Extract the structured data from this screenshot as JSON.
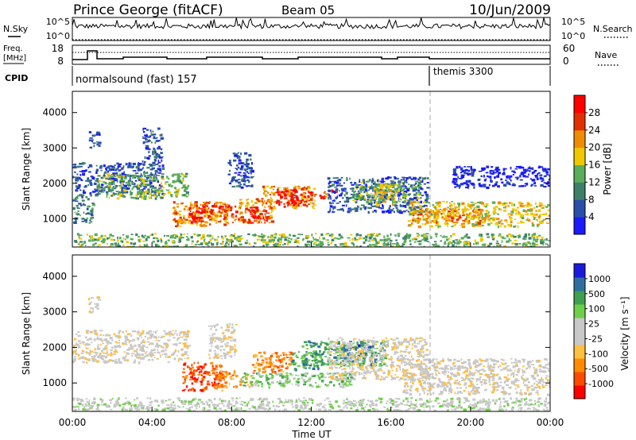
{
  "header": {
    "station": "Prince George (fitACF)",
    "beam": "Beam 05",
    "date": "10/Jun/2009"
  },
  "top_strip": {
    "nsky_label": "N.Sky",
    "nsearch_label": "N.Search",
    "left_ticks": [
      "10^5",
      "10^0"
    ],
    "right_ticks": [
      "10^5",
      "10^0"
    ],
    "freq_label_1": "Freq.",
    "freq_label_2": "[MHz]",
    "freq_ticks": [
      "18",
      "8"
    ],
    "nave_label": "Nave",
    "nave_ticks": [
      "60",
      "0"
    ],
    "cpid_label": "CPID",
    "cpid_segments": [
      {
        "label": "normalsound (fast) 157",
        "start_hour": 0
      },
      {
        "label": "themis 3300",
        "start_hour": 18
      }
    ]
  },
  "chart_data": [
    {
      "type": "heatmap",
      "title": "",
      "xlabel": "",
      "ylabel": "Slant Range [km]",
      "xlim_hours": [
        0,
        24
      ],
      "ylim": [
        200,
        4600
      ],
      "y_ticks": [
        "1000",
        "2000",
        "3000",
        "4000"
      ],
      "colorbar_label": "Power [dB]",
      "colorbar_ticks": [
        "4",
        "8",
        "12",
        "16",
        "20",
        "24",
        "28"
      ],
      "colorbar_range": [
        0,
        32
      ],
      "colors": [
        "#1a1aff",
        "#2a4fa8",
        "#3e7f6a",
        "#5aad5a",
        "#f0c800",
        "#f08c00",
        "#e03000",
        "#ff0000"
      ],
      "regions": [
        {
          "t0": 0.0,
          "t1": 4.5,
          "r0": 1700,
          "r1": 2600,
          "level": 1
        },
        {
          "t0": 1.2,
          "t1": 5.8,
          "r0": 1600,
          "r1": 2300,
          "level": 3
        },
        {
          "t0": 0.8,
          "t1": 1.3,
          "r0": 3000,
          "r1": 3500,
          "level": 1
        },
        {
          "t0": 3.5,
          "t1": 4.5,
          "r0": 2600,
          "r1": 3600,
          "level": 1
        },
        {
          "t0": 0.0,
          "t1": 1.0,
          "r0": 900,
          "r1": 1700,
          "level": 2
        },
        {
          "t0": 5.0,
          "t1": 7.8,
          "r0": 800,
          "r1": 1500,
          "level": 5
        },
        {
          "t0": 5.8,
          "t1": 7.0,
          "r0": 900,
          "r1": 1400,
          "level": 7
        },
        {
          "t0": 7.3,
          "t1": 8.2,
          "r0": 900,
          "r1": 1400,
          "level": 6
        },
        {
          "t0": 8.3,
          "t1": 10.0,
          "r0": 900,
          "r1": 1600,
          "level": 5
        },
        {
          "t0": 8.8,
          "t1": 9.8,
          "r0": 900,
          "r1": 1400,
          "level": 7
        },
        {
          "t0": 9.5,
          "t1": 12.2,
          "r0": 1300,
          "r1": 1950,
          "level": 5
        },
        {
          "t0": 10.2,
          "t1": 12.0,
          "r0": 1400,
          "r1": 1850,
          "level": 7
        },
        {
          "t0": 12.3,
          "t1": 13.2,
          "r0": 1600,
          "r1": 1850,
          "level": 6
        },
        {
          "t0": 7.8,
          "t1": 9.0,
          "r0": 1900,
          "r1": 2900,
          "level": 1
        },
        {
          "t0": 12.8,
          "t1": 17.8,
          "r0": 1200,
          "r1": 2200,
          "level": 1
        },
        {
          "t0": 14.0,
          "t1": 17.5,
          "r0": 1500,
          "r1": 2100,
          "level": 3
        },
        {
          "t0": 15.0,
          "t1": 16.2,
          "r0": 1400,
          "r1": 2000,
          "level": 4
        },
        {
          "t0": 16.8,
          "t1": 24.0,
          "r0": 800,
          "r1": 1500,
          "level": 4
        },
        {
          "t0": 17.0,
          "t1": 20.5,
          "r0": 900,
          "r1": 1300,
          "level": 5
        },
        {
          "t0": 19.0,
          "t1": 24.0,
          "r0": 1900,
          "r1": 2500,
          "level": 0
        },
        {
          "t0": 0.0,
          "t1": 24.0,
          "r0": 200,
          "r1": 600,
          "level": 3
        }
      ]
    },
    {
      "type": "heatmap",
      "title": "",
      "xlabel": "Time UT",
      "ylabel": "Slant Range [km]",
      "xlim_hours": [
        0,
        24
      ],
      "ylim": [
        200,
        4600
      ],
      "x_ticks": [
        "00:00",
        "04:00",
        "08:00",
        "12:00",
        "16:00",
        "20:00",
        "00:00"
      ],
      "y_ticks": [
        "1000",
        "2000",
        "3000",
        "4000"
      ],
      "colorbar_label": "Velocity [m s⁻¹]",
      "colorbar_ticks": [
        "1000",
        "500",
        "100",
        "25",
        "-25",
        "-100",
        "-500",
        "-1000"
      ],
      "colors": [
        "#ff0000",
        "#ff4a00",
        "#ff8c00",
        "#ffbf40",
        "#c8c8c8",
        "#c8c8c8",
        "#6fcf4a",
        "#3ea050",
        "#2f6fa0",
        "#1a1adf"
      ],
      "regions": [
        {
          "t0": 0.0,
          "t1": 5.8,
          "r0": 1600,
          "r1": 2500,
          "color": 4
        },
        {
          "t0": 0.8,
          "t1": 1.3,
          "r0": 3000,
          "r1": 3500,
          "color": 4
        },
        {
          "t0": 5.5,
          "t1": 7.5,
          "r0": 800,
          "r1": 1600,
          "color": 1
        },
        {
          "t0": 7.0,
          "t1": 8.2,
          "r0": 900,
          "r1": 1400,
          "color": 2
        },
        {
          "t0": 8.3,
          "t1": 9.0,
          "r0": 900,
          "r1": 1300,
          "color": 3
        },
        {
          "t0": 8.5,
          "t1": 11.0,
          "r0": 900,
          "r1": 1300,
          "color": 6
        },
        {
          "t0": 9.0,
          "t1": 11.0,
          "r0": 1300,
          "r1": 1900,
          "color": 2
        },
        {
          "t0": 11.0,
          "t1": 12.5,
          "r0": 1400,
          "r1": 1900,
          "color": 7
        },
        {
          "t0": 11.5,
          "t1": 15.8,
          "r0": 1500,
          "r1": 2200,
          "color": 7
        },
        {
          "t0": 13.5,
          "t1": 15.0,
          "r0": 1700,
          "r1": 2100,
          "color": 8
        },
        {
          "t0": 11.0,
          "t1": 14.0,
          "r0": 900,
          "r1": 1300,
          "color": 6
        },
        {
          "t0": 6.8,
          "t1": 8.2,
          "r0": 1700,
          "r1": 2700,
          "color": 4
        },
        {
          "t0": 12.8,
          "t1": 17.8,
          "r0": 1100,
          "r1": 2300,
          "color": 4
        },
        {
          "t0": 16.5,
          "t1": 24.0,
          "r0": 700,
          "r1": 1700,
          "color": 4
        },
        {
          "t0": 0.0,
          "t1": 24.0,
          "r0": 200,
          "r1": 600,
          "color": 5
        }
      ]
    }
  ]
}
